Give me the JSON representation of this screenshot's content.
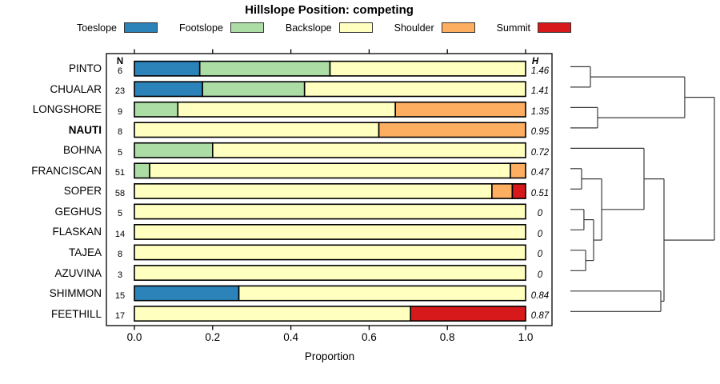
{
  "chart_data": {
    "type": "bar",
    "orientation": "horizontal-stacked",
    "title": "Hillslope Position: competing",
    "xlabel": "Proportion",
    "xlim": [
      0,
      1
    ],
    "x_tick_labels": [
      "0.0",
      "0.2",
      "0.4",
      "0.6",
      "0.8",
      "1.0"
    ],
    "x_tick_values": [
      0.0,
      0.2,
      0.4,
      0.6,
      0.8,
      1.0
    ],
    "grid": false,
    "legend_position": "top",
    "legend": [
      {
        "label": "Toeslope",
        "color": "#2B83BA"
      },
      {
        "label": "Footslope",
        "color": "#ABDDA4"
      },
      {
        "label": "Backslope",
        "color": "#FFFFBF"
      },
      {
        "label": "Shoulder",
        "color": "#FDAE61"
      },
      {
        "label": "Summit",
        "color": "#D7191C"
      }
    ],
    "columns": {
      "n_header": "N",
      "h_header": "H"
    },
    "rows": [
      {
        "label": "PINTO",
        "n": 6,
        "h": "1.46",
        "bold": false,
        "segments": [
          {
            "name": "Toeslope",
            "value": 0.167
          },
          {
            "name": "Footslope",
            "value": 0.333
          },
          {
            "name": "Backslope",
            "value": 0.5
          }
        ]
      },
      {
        "label": "CHUALAR",
        "n": 23,
        "h": "1.41",
        "bold": false,
        "segments": [
          {
            "name": "Toeslope",
            "value": 0.174
          },
          {
            "name": "Footslope",
            "value": 0.261
          },
          {
            "name": "Backslope",
            "value": 0.565
          }
        ]
      },
      {
        "label": "LONGSHORE",
        "n": 9,
        "h": "1.35",
        "bold": false,
        "segments": [
          {
            "name": "Footslope",
            "value": 0.111
          },
          {
            "name": "Backslope",
            "value": 0.556
          },
          {
            "name": "Shoulder",
            "value": 0.333
          }
        ]
      },
      {
        "label": "NAUTI",
        "n": 8,
        "h": "0.95",
        "bold": true,
        "segments": [
          {
            "name": "Backslope",
            "value": 0.625
          },
          {
            "name": "Shoulder",
            "value": 0.375
          }
        ]
      },
      {
        "label": "BOHNA",
        "n": 5,
        "h": "0.72",
        "bold": false,
        "segments": [
          {
            "name": "Footslope",
            "value": 0.2
          },
          {
            "name": "Backslope",
            "value": 0.8
          }
        ]
      },
      {
        "label": "FRANCISCAN",
        "n": 51,
        "h": "0.47",
        "bold": false,
        "segments": [
          {
            "name": "Footslope",
            "value": 0.039
          },
          {
            "name": "Backslope",
            "value": 0.922
          },
          {
            "name": "Shoulder",
            "value": 0.039
          }
        ]
      },
      {
        "label": "SOPER",
        "n": 58,
        "h": "0.51",
        "bold": false,
        "segments": [
          {
            "name": "Backslope",
            "value": 0.914
          },
          {
            "name": "Shoulder",
            "value": 0.052
          },
          {
            "name": "Summit",
            "value": 0.034
          }
        ]
      },
      {
        "label": "GEGHUS",
        "n": 5,
        "h": "0",
        "bold": false,
        "segments": [
          {
            "name": "Backslope",
            "value": 1.0
          }
        ]
      },
      {
        "label": "FLASKAN",
        "n": 14,
        "h": "0",
        "bold": false,
        "segments": [
          {
            "name": "Backslope",
            "value": 1.0
          }
        ]
      },
      {
        "label": "TAJEA",
        "n": 8,
        "h": "0",
        "bold": false,
        "segments": [
          {
            "name": "Backslope",
            "value": 1.0
          }
        ]
      },
      {
        "label": "AZUVINA",
        "n": 3,
        "h": "0",
        "bold": false,
        "segments": [
          {
            "name": "Backslope",
            "value": 1.0
          }
        ]
      },
      {
        "label": "SHIMMON",
        "n": 15,
        "h": "0.84",
        "bold": false,
        "segments": [
          {
            "name": "Toeslope",
            "value": 0.267
          },
          {
            "name": "Backslope",
            "value": 0.733
          }
        ]
      },
      {
        "label": "FEETHILL",
        "n": 17,
        "h": "0.87",
        "bold": false,
        "segments": [
          {
            "name": "Backslope",
            "value": 0.706
          },
          {
            "name": "Summit",
            "value": 0.294
          }
        ]
      }
    ],
    "dendrogram": {
      "position": "right",
      "leaf_order": [
        "PINTO",
        "CHUALAR",
        "LONGSHORE",
        "NAUTI",
        "BOHNA",
        "FRANCISCAN",
        "SOPER",
        "GEGHUS",
        "FLASKAN",
        "TAJEA",
        "AZUVINA",
        "SHIMMON",
        "FEETHILL"
      ],
      "merges": [
        {
          "a": "PINTO",
          "b": "CHUALAR",
          "h": 0.139
        },
        {
          "a": "LONGSHORE",
          "b": "NAUTI",
          "h": 0.189
        },
        {
          "a": "M0",
          "b": "M1",
          "h": 0.794
        },
        {
          "a": "FRANCISCAN",
          "b": "SOPER",
          "h": 0.078
        },
        {
          "a": "GEGHUS",
          "b": "FLASKAN",
          "h": 0.094
        },
        {
          "a": "TAJEA",
          "b": "AZUVINA",
          "h": 0.106
        },
        {
          "a": "M4",
          "b": "M5",
          "h": 0.161
        },
        {
          "a": "M3",
          "b": "M6",
          "h": 0.217
        },
        {
          "a": "BOHNA",
          "b": "M7",
          "h": 0.511
        },
        {
          "a": "SHIMMON",
          "b": "FEETHILL",
          "h": 0.628
        },
        {
          "a": "M8",
          "b": "M9",
          "h": 0.65
        },
        {
          "a": "M2",
          "b": "M10",
          "h": 1.0
        }
      ]
    }
  }
}
